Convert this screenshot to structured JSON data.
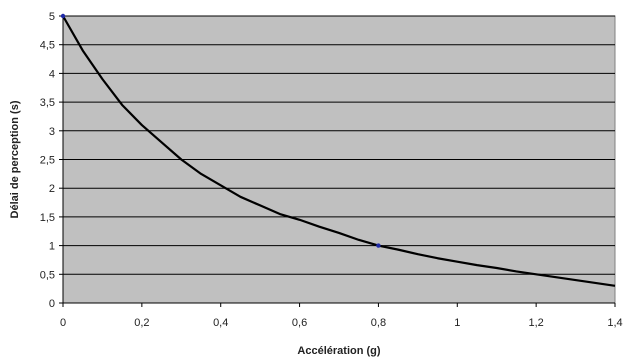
{
  "chart_data": {
    "type": "line",
    "title": "",
    "xlabel": "Accélération (g)",
    "ylabel": "Délai de perception (s)",
    "xlim": [
      0,
      1.4
    ],
    "ylim": [
      0,
      5
    ],
    "xticks": [
      0,
      0.2,
      0.4,
      0.6,
      0.8,
      1,
      1.2,
      1.4
    ],
    "xtick_labels": [
      "0",
      "0,2",
      "0,4",
      "0,6",
      "0,8",
      "1",
      "1,2",
      "1,4"
    ],
    "yticks": [
      0,
      0.5,
      1,
      1.5,
      2,
      2.5,
      3,
      3.5,
      4,
      4.5,
      5
    ],
    "ytick_labels": [
      "0",
      "0,5",
      "1",
      "1,5",
      "2",
      "2,5",
      "3",
      "3,5",
      "4",
      "4,5",
      "5"
    ],
    "grid": true,
    "legend": "none",
    "colors": {
      "plot_background": "#c0c0c0",
      "line": "#000000",
      "marker": "#1f2aa8",
      "grid": "#000000"
    },
    "series": [
      {
        "x": [
          0,
          0.05,
          0.1,
          0.15,
          0.2,
          0.25,
          0.3,
          0.35,
          0.4,
          0.45,
          0.5,
          0.55,
          0.6,
          0.65,
          0.7,
          0.75,
          0.8,
          0.85,
          0.9,
          0.95,
          1,
          1.05,
          1.1,
          1.15,
          1.2,
          1.25,
          1.3,
          1.35,
          1.4
        ],
        "y": [
          5.0,
          4.4,
          3.9,
          3.45,
          3.1,
          2.8,
          2.5,
          2.25,
          2.05,
          1.85,
          1.7,
          1.55,
          1.45,
          1.33,
          1.22,
          1.1,
          1.0,
          0.93,
          0.85,
          0.78,
          0.72,
          0.66,
          0.61,
          0.55,
          0.5,
          0.45,
          0.4,
          0.35,
          0.3
        ],
        "markers_x": [
          0,
          0.8
        ],
        "markers_y": [
          5,
          1
        ]
      }
    ]
  }
}
